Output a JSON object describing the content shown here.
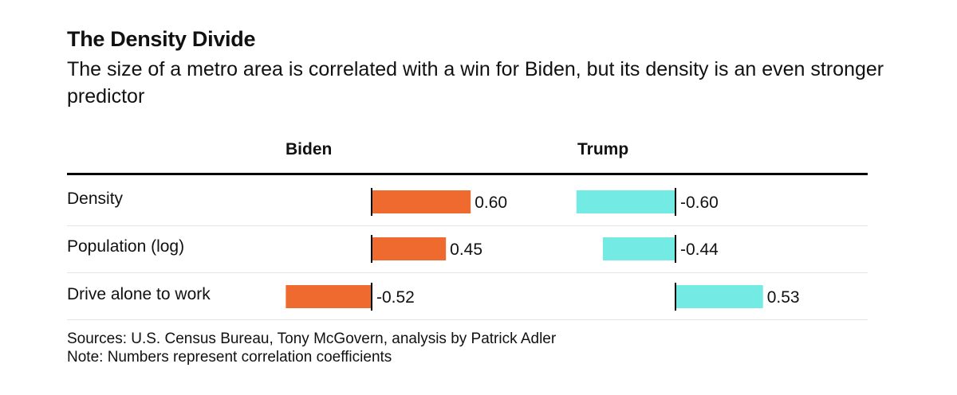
{
  "title": "The Density Divide",
  "subtitle": "The size of a metro area is correlated with a win for Biden, but its density is an even stronger predictor",
  "colors": {
    "biden": "#EE6A2E",
    "trump": "#74EAE4",
    "axis": "#000000"
  },
  "chart_data": {
    "type": "bar",
    "orientation": "horizontal",
    "categories": [
      "Density",
      "Population (log)",
      "Drive alone to work"
    ],
    "series": [
      {
        "name": "Biden",
        "values": [
          0.6,
          0.45,
          -0.52
        ],
        "labels": [
          "0.60",
          "0.45",
          "-0.52"
        ]
      },
      {
        "name": "Trump",
        "values": [
          -0.6,
          -0.44,
          0.53
        ],
        "labels": [
          "-0.60",
          "-0.44",
          "0.53"
        ]
      }
    ],
    "xlim": [
      -0.6,
      0.6
    ]
  },
  "footer": {
    "sources": "Sources: U.S. Census Bureau, Tony McGovern, analysis by Patrick Adler",
    "note": "Note: Numbers represent correlation coefficients"
  }
}
